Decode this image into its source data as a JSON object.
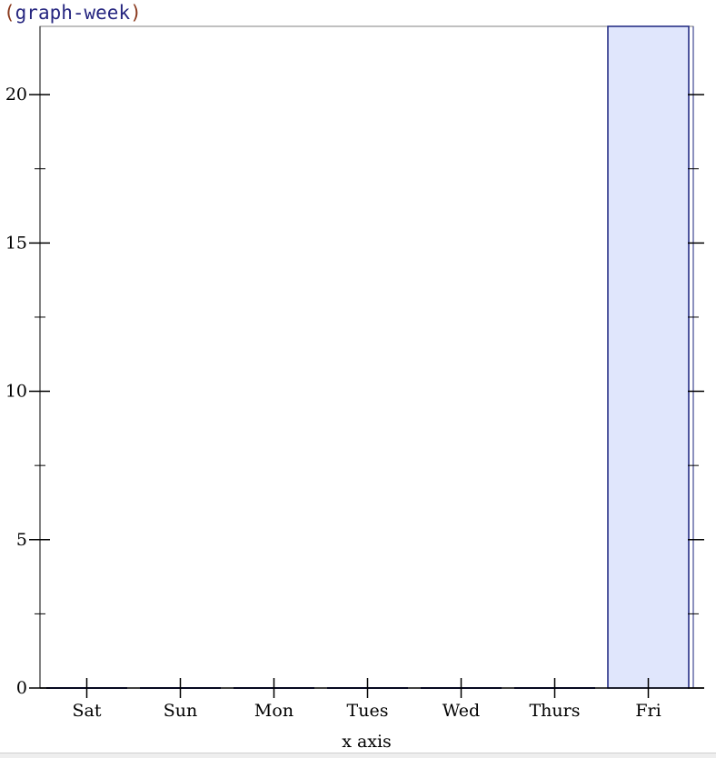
{
  "code": {
    "open_paren": "(",
    "identifier": "graph-week",
    "close_paren": ")"
  },
  "colors": {
    "bar_fill": "#e0e6fc",
    "bar_stroke": "#1a237e",
    "axis": "#000000",
    "frame": "#808080",
    "code_paren": "#8b3a1e",
    "code_identifier": "#262680"
  },
  "chart_data": {
    "type": "bar",
    "categories": [
      "Sat",
      "Sun",
      "Mon",
      "Tues",
      "Wed",
      "Thurs",
      "Fri"
    ],
    "values": [
      0,
      0,
      0,
      0,
      0,
      0,
      22.3
    ],
    "xlabel": "x axis",
    "ylabel": "",
    "ylim": [
      0,
      22.3
    ],
    "yticks_major": [
      0,
      5,
      10,
      15,
      20
    ],
    "yticks_minor": [
      2.5,
      7.5,
      12.5,
      17.5
    ],
    "grid": false,
    "legend": "none"
  }
}
